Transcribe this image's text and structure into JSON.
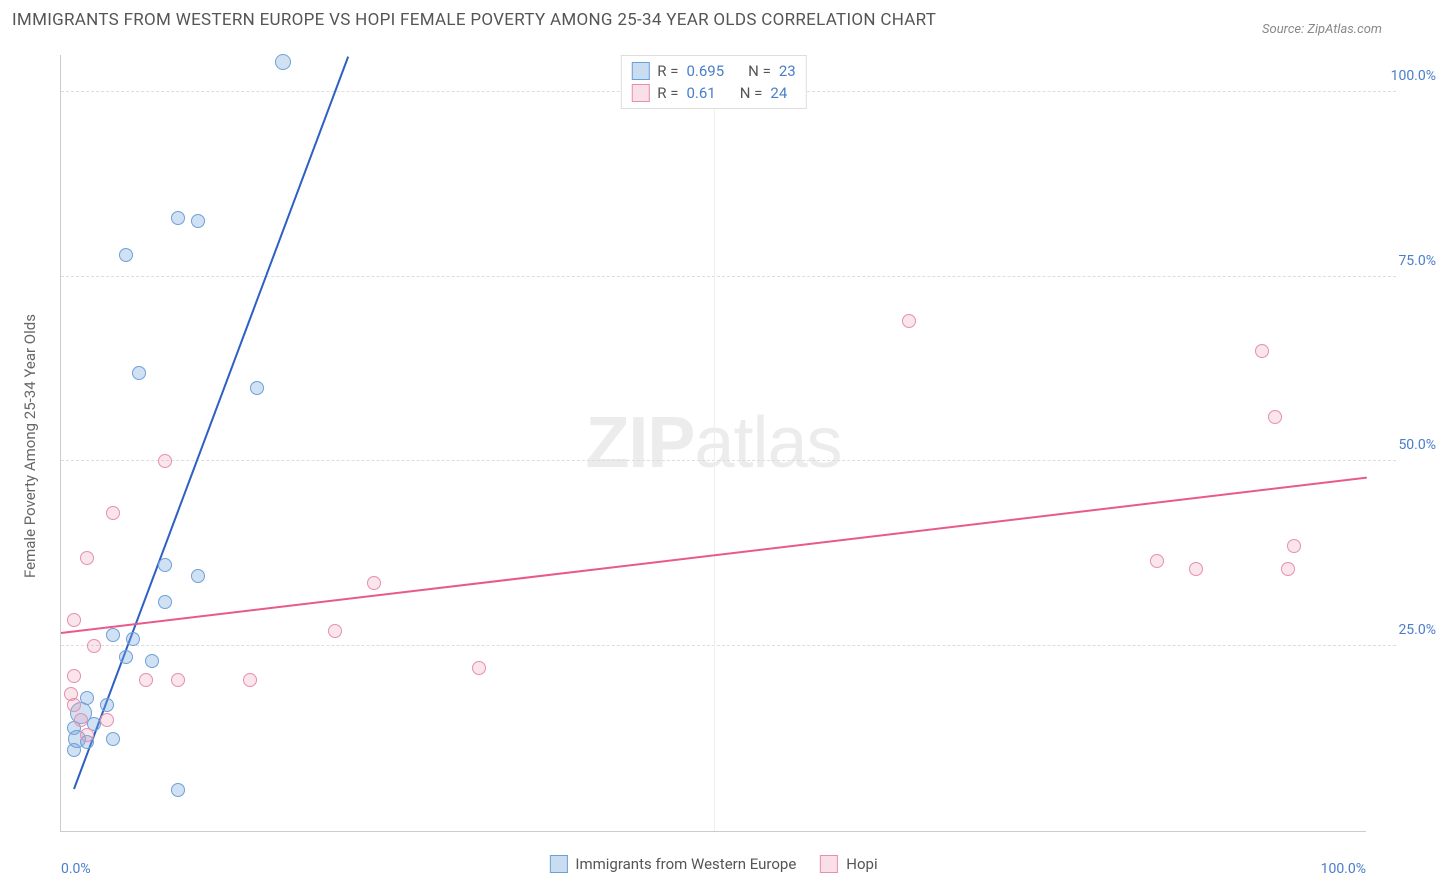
{
  "title": "IMMIGRANTS FROM WESTERN EUROPE VS HOPI FEMALE POVERTY AMONG 25-34 YEAR OLDS CORRELATION CHART",
  "source": "Source: ZipAtlas.com",
  "watermark_bold": "ZIP",
  "watermark_rest": "atlas",
  "ylabel": "Female Poverty Among 25-34 Year Olds",
  "chart": {
    "type": "scatter",
    "xlim": [
      0,
      100
    ],
    "ylim": [
      0,
      105
    ],
    "xticks": [
      0,
      50,
      100
    ],
    "xtick_labels": [
      "0.0%",
      "",
      "100.0%"
    ],
    "yticks": [
      25,
      50,
      75,
      100
    ],
    "ytick_labels": [
      "25.0%",
      "50.0%",
      "75.0%",
      "100.0%"
    ],
    "grid_color": "#dddddd",
    "background_color": "#ffffff",
    "marker_radius": 7,
    "series": [
      {
        "name": "Immigrants from Western Europe",
        "fill": "rgba(120,170,220,0.35)",
        "stroke": "#6ea0d8",
        "line_color": "#2d5fc4",
        "r": 0.695,
        "n": 23,
        "trend": {
          "x1": 1,
          "y1": 6,
          "x2": 22,
          "y2": 105
        },
        "points": [
          {
            "x": 17,
            "y": 104,
            "r": 8
          },
          {
            "x": 9,
            "y": 83,
            "r": 7
          },
          {
            "x": 10.5,
            "y": 82.5,
            "r": 7
          },
          {
            "x": 5,
            "y": 78,
            "r": 7
          },
          {
            "x": 6,
            "y": 62,
            "r": 7
          },
          {
            "x": 15,
            "y": 60,
            "r": 7
          },
          {
            "x": 8,
            "y": 36,
            "r": 7
          },
          {
            "x": 10.5,
            "y": 34.5,
            "r": 7
          },
          {
            "x": 8,
            "y": 31,
            "r": 7
          },
          {
            "x": 4,
            "y": 26.5,
            "r": 7
          },
          {
            "x": 5.5,
            "y": 26,
            "r": 7
          },
          {
            "x": 5,
            "y": 23.5,
            "r": 7
          },
          {
            "x": 7,
            "y": 23,
            "r": 7
          },
          {
            "x": 2,
            "y": 18,
            "r": 7
          },
          {
            "x": 3.5,
            "y": 17,
            "r": 7
          },
          {
            "x": 1.5,
            "y": 16,
            "r": 11
          },
          {
            "x": 1,
            "y": 14,
            "r": 7
          },
          {
            "x": 2.5,
            "y": 14.5,
            "r": 7
          },
          {
            "x": 1.2,
            "y": 12.5,
            "r": 9
          },
          {
            "x": 2,
            "y": 12,
            "r": 7
          },
          {
            "x": 4,
            "y": 12.5,
            "r": 7
          },
          {
            "x": 1,
            "y": 11,
            "r": 7
          },
          {
            "x": 9,
            "y": 5.5,
            "r": 7
          }
        ]
      },
      {
        "name": "Hopi",
        "fill": "rgba(235,150,175,0.25)",
        "stroke": "#e78fb0",
        "line_color": "#e85a8a",
        "r": 0.61,
        "n": 24,
        "trend": {
          "x1": 0,
          "y1": 27,
          "x2": 100,
          "y2": 48
        },
        "points": [
          {
            "x": 65,
            "y": 69,
            "r": 7
          },
          {
            "x": 92,
            "y": 65,
            "r": 7
          },
          {
            "x": 93,
            "y": 56,
            "r": 7
          },
          {
            "x": 8,
            "y": 50,
            "r": 7
          },
          {
            "x": 4,
            "y": 43,
            "r": 7
          },
          {
            "x": 94.5,
            "y": 38.5,
            "r": 7
          },
          {
            "x": 2,
            "y": 37,
            "r": 7
          },
          {
            "x": 84,
            "y": 36.5,
            "r": 7
          },
          {
            "x": 87,
            "y": 35.5,
            "r": 7
          },
          {
            "x": 94,
            "y": 35.5,
            "r": 7
          },
          {
            "x": 24,
            "y": 33.5,
            "r": 7
          },
          {
            "x": 1,
            "y": 28.5,
            "r": 7
          },
          {
            "x": 21,
            "y": 27,
            "r": 7
          },
          {
            "x": 2.5,
            "y": 25,
            "r": 7
          },
          {
            "x": 32,
            "y": 22,
            "r": 7
          },
          {
            "x": 1,
            "y": 21,
            "r": 7
          },
          {
            "x": 14.5,
            "y": 20.5,
            "r": 7
          },
          {
            "x": 6.5,
            "y": 20.5,
            "r": 7
          },
          {
            "x": 9,
            "y": 20.5,
            "r": 7
          },
          {
            "x": 0.8,
            "y": 18.5,
            "r": 7
          },
          {
            "x": 1,
            "y": 17,
            "r": 7
          },
          {
            "x": 1.5,
            "y": 15,
            "r": 7
          },
          {
            "x": 3.5,
            "y": 15,
            "r": 7
          },
          {
            "x": 2,
            "y": 13,
            "r": 7
          }
        ]
      }
    ]
  },
  "legend_top": {
    "r_label": "R =",
    "n_label": "N ="
  }
}
